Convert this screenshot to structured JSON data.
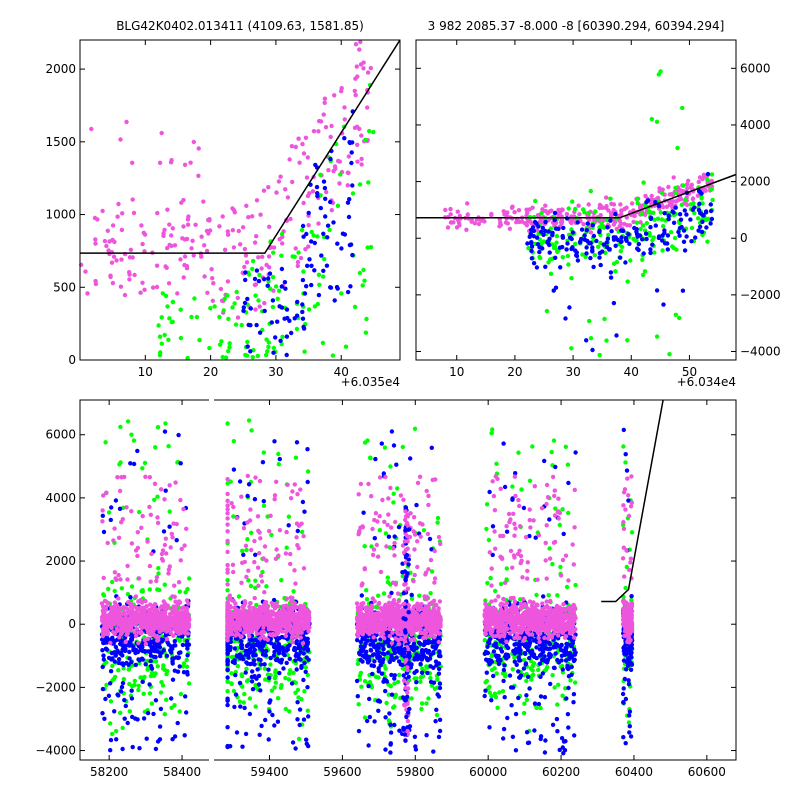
{
  "figure": {
    "background": "#ffffff",
    "colors": {
      "blue": "#0000ff",
      "green": "#00ff00",
      "magenta": "#ee55dd",
      "line": "#000000"
    }
  },
  "chart_data": [
    {
      "id": "top-left",
      "type": "scatter",
      "title": "BLG42K0402.013411 (4109.63, 1581.85)",
      "xlim": [
        0,
        49
      ],
      "ylim": [
        0,
        2200
      ],
      "xticks": [
        10,
        20,
        30,
        40
      ],
      "yticks": [
        0,
        500,
        1000,
        1500,
        2000
      ],
      "x_offset_label": "+6.035e4",
      "y_axis_side": "left",
      "model_line": [
        [
          0,
          735
        ],
        [
          28.3,
          735
        ],
        [
          49,
          2200
        ]
      ]
    },
    {
      "id": "top-right",
      "type": "scatter",
      "title": "3 982 2085.37 -8.000 -8 [60390.294, 60394.294]",
      "xlim": [
        3,
        58
      ],
      "ylim": [
        -4300,
        7000
      ],
      "xticks": [
        10,
        20,
        30,
        40,
        50
      ],
      "yticks": [
        -4000,
        -2000,
        0,
        2000,
        4000,
        6000
      ],
      "x_offset_label": "+6.034e4",
      "y_axis_side": "right",
      "model_line": [
        [
          3,
          720
        ],
        [
          38,
          720
        ],
        [
          58,
          2250
        ]
      ]
    },
    {
      "id": "bottom",
      "type": "scatter",
      "title": "",
      "xlim": [
        58120,
        60680
      ],
      "ylim": [
        -4300,
        7100
      ],
      "xticks": [
        58200,
        58400,
        59400,
        59600,
        59800,
        60000,
        60200,
        60400,
        60600
      ],
      "yticks": [
        -4000,
        -2000,
        0,
        2000,
        4000,
        6000
      ],
      "axis_break": {
        "from": 58520,
        "to": 59290
      },
      "model_line": [
        [
          60310,
          720
        ],
        [
          60350,
          720
        ],
        [
          60385,
          1100
        ],
        [
          60480,
          7100
        ]
      ],
      "seasons": [
        {
          "x": [
            58180,
            58420
          ],
          "core": [
            -1000,
            1300
          ],
          "n": 600
        },
        {
          "x": [
            59260,
            59510
          ],
          "core": [
            -1400,
            1200
          ],
          "n": 650
        },
        {
          "x": [
            59640,
            59870
          ],
          "core": [
            -1800,
            1400
          ],
          "n": 650
        },
        {
          "x": [
            59990,
            60240
          ],
          "core": [
            -1800,
            1300
          ],
          "n": 650
        },
        {
          "x": [
            60370,
            60395
          ],
          "core": [
            -600,
            1500
          ],
          "n": 160
        }
      ]
    }
  ]
}
